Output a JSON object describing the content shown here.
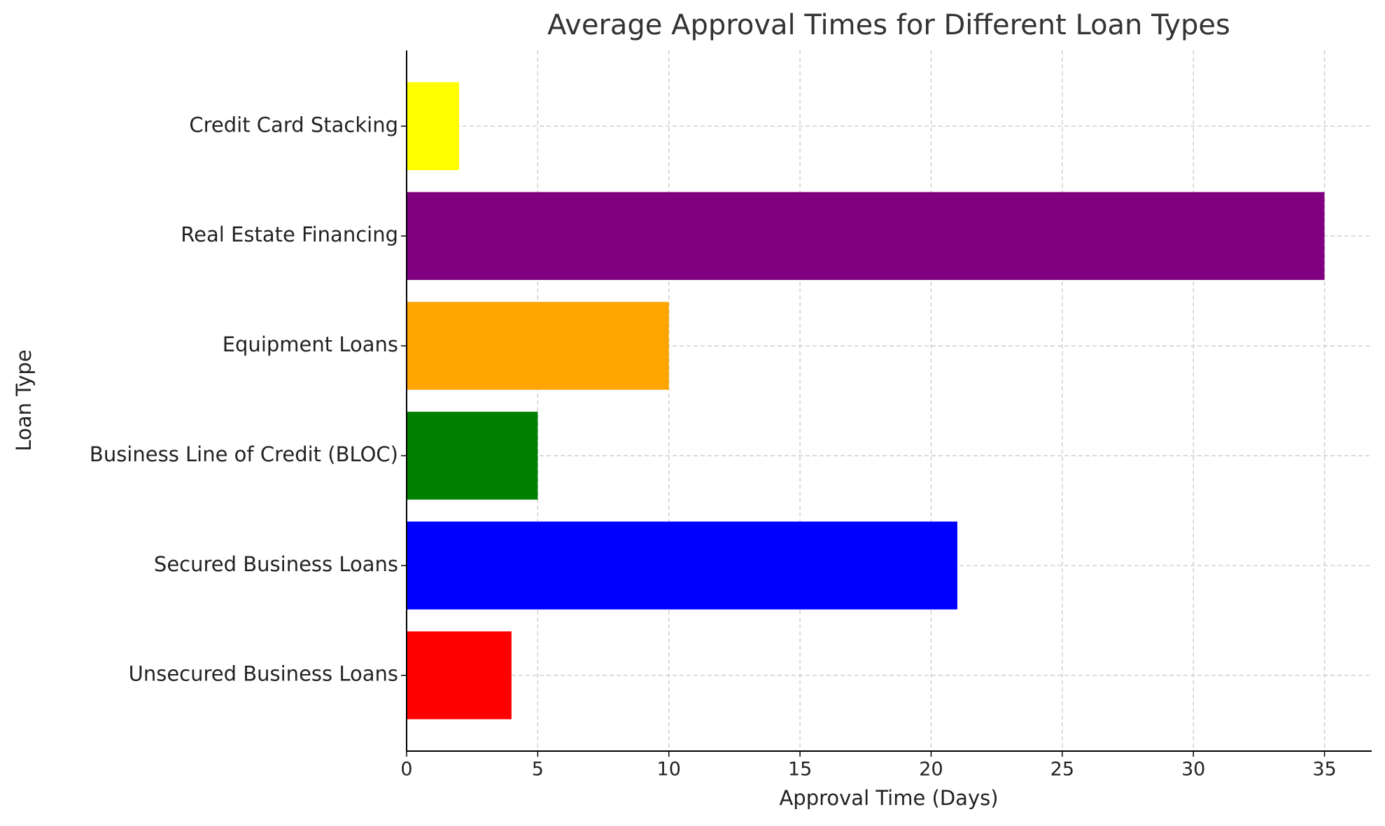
{
  "chart_data": {
    "type": "barh",
    "title": "Average Approval Times for Different Loan Types",
    "x_label": "Approval Time (Days)",
    "y_label": "Loan Type",
    "categories": [
      "Unsecured Business Loans",
      "Secured Business Loans",
      "Business Line of Credit (BLOC)",
      "Equipment Loans",
      "Real Estate Financing",
      "Credit Card Stacking"
    ],
    "values": [
      4,
      21,
      5,
      10,
      35,
      2
    ],
    "colors": [
      "#ff0000",
      "#0000ff",
      "#008000",
      "#ffa500",
      "#800080",
      "#ffff00"
    ],
    "xlim": [
      0,
      36.8
    ],
    "xticks": [
      0,
      5,
      10,
      15,
      20,
      25,
      30,
      35
    ],
    "grid": true
  }
}
